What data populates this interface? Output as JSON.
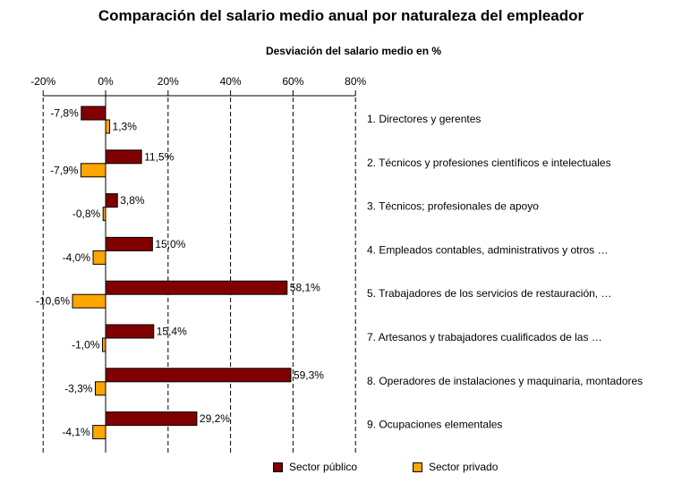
{
  "chart_data": {
    "type": "bar",
    "orientation": "horizontal",
    "title": "Comparación del salario medio anual por naturaleza del empleador",
    "xlabel": "Desviación del salario medio en %",
    "xlim": [
      -20,
      80
    ],
    "xticks": [
      "-20%",
      "0%",
      "20%",
      "40%",
      "60%",
      "80%"
    ],
    "categories": [
      "1. Directores y gerentes",
      "2. Técnicos y profesiones científicos e intelectuales",
      "3. Técnicos; profesionales de apoyo",
      "4. Empleados contables, administrativos y otros …",
      "5. Trabajadores de los servicios de restauración, …",
      "7. Artesanos y trabajadores cualificados de las …",
      "8. Operadores de instalaciones y maquinaria, montadores",
      "9. Ocupaciones elementales"
    ],
    "series": [
      {
        "name": "Sector público",
        "color": "#800000",
        "values": [
          -7.8,
          11.5,
          3.8,
          15.0,
          58.1,
          15.4,
          59.3,
          29.2
        ],
        "labels": [
          "-7,8%",
          "11,5%",
          "3,8%",
          "15,0%",
          "58,1%",
          "15,4%",
          "59,3%",
          "29,2%"
        ]
      },
      {
        "name": "Sector privado",
        "color": "#FFA500",
        "values": [
          1.3,
          -7.9,
          -0.8,
          -4.0,
          -10.6,
          -1.0,
          -3.3,
          -4.1
        ],
        "labels": [
          "1,3%",
          "-7,9%",
          "-0,8%",
          "-4,0%",
          "-10,6%",
          "-1,0%",
          "-3,3%",
          "-4,1%"
        ]
      }
    ],
    "grid": "vertical dashed",
    "legend": "bottom"
  }
}
